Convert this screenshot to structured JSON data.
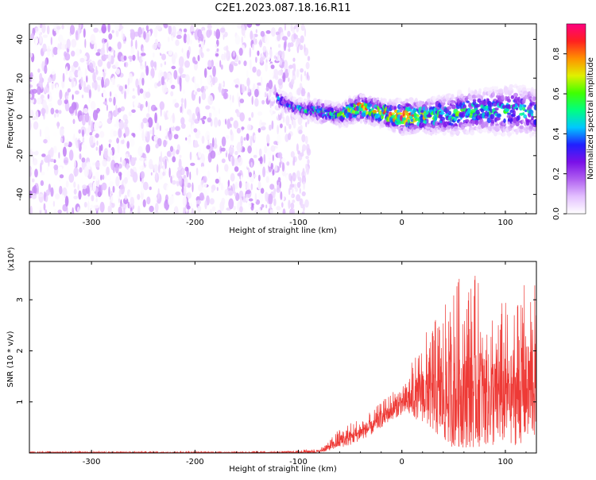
{
  "figure_title": "C2E1.2023.087.18.16.R11",
  "colors": {
    "snr_line": "#ee3a36",
    "colormap": [
      "#ffffff",
      "#e3c0ff",
      "#b060f0",
      "#7a10e8",
      "#2020ff",
      "#00c8ff",
      "#00ff80",
      "#40ff00",
      "#e0f000",
      "#ff9000",
      "#ff2020",
      "#ff0080"
    ]
  },
  "chart_data": [
    {
      "type": "heatmap",
      "title": "C2E1.2023.087.18.16.R11",
      "xlabel": "Height of straight line (km)",
      "ylabel": "Frequency (Hz)",
      "xlim": [
        -360,
        130
      ],
      "ylim": [
        -50,
        48
      ],
      "xticks": [
        -300,
        -200,
        -100,
        0,
        100
      ],
      "xtick_labels": [
        "-300",
        "-200",
        "-100",
        "0",
        "100"
      ],
      "yticks": [
        -40,
        -20,
        0,
        20,
        40
      ],
      "ytick_labels": [
        "-40",
        "-20",
        "0",
        "20",
        "40"
      ],
      "colorbar": {
        "label": "Normalized spectral amplitude",
        "range": [
          0,
          0.95
        ],
        "ticks": [
          0.0,
          0.2,
          0.4,
          0.6,
          0.8
        ],
        "tick_labels": [
          "0.0",
          "0.2",
          "0.4",
          "0.6",
          "0.8"
        ]
      },
      "noise_region": {
        "x": [
          -360,
          -110
        ],
        "amplitude_range": [
          0.0,
          0.15
        ]
      },
      "gap_region": {
        "x": [
          -110,
          -90
        ],
        "amplitude_range": [
          0.0,
          0.08
        ]
      },
      "signal_band": {
        "x": [
          -120,
          -100,
          -80,
          -60,
          -40,
          -20,
          0,
          20,
          40,
          60,
          80,
          100,
          120,
          130
        ],
        "center_freq": [
          9,
          4,
          3,
          1,
          5,
          2,
          0,
          0,
          1,
          2,
          3,
          3,
          3,
          2
        ],
        "half_width": [
          3,
          3,
          4,
          4,
          5,
          5,
          6,
          6,
          7,
          8,
          8,
          9,
          9,
          9
        ],
        "peak_amplitude": [
          0.4,
          0.45,
          0.5,
          0.55,
          0.85,
          0.7,
          0.9,
          0.7,
          0.55,
          0.55,
          0.5,
          0.5,
          0.45,
          0.45
        ]
      },
      "grid": false
    },
    {
      "type": "line",
      "xlabel": "Height of straight line (km)",
      "ylabel": "SNR (10 * v/v)",
      "y_multiplier_label": "(x10⁴)",
      "xlim": [
        -360,
        130
      ],
      "ylim": [
        0,
        3.75
      ],
      "xticks": [
        -300,
        -200,
        -100,
        0,
        100
      ],
      "xtick_labels": [
        "-300",
        "-200",
        "-100",
        "0",
        "100"
      ],
      "yticks": [
        1,
        2,
        3
      ],
      "ytick_labels": [
        "1",
        "2",
        "3"
      ],
      "series": [
        {
          "x": [
            -360,
            -300,
            -200,
            -120,
            -100,
            -90,
            -80,
            -70,
            -60,
            -50,
            -40,
            -30,
            -20,
            -10,
            0,
            10,
            20,
            30,
            40,
            50,
            60,
            70,
            80,
            90,
            100,
            110,
            120,
            130
          ],
          "y_upper": [
            0.03,
            0.03,
            0.03,
            0.03,
            0.05,
            0.08,
            0.08,
            0.25,
            0.5,
            0.6,
            0.7,
            0.8,
            1.0,
            1.2,
            1.4,
            1.8,
            2.3,
            2.6,
            2.8,
            3.3,
            3.6,
            3.5,
            3.3,
            3.0,
            3.0,
            3.2,
            3.4,
            3.3
          ],
          "y_lower": [
            0.0,
            0.0,
            0.0,
            0.0,
            0.0,
            0.0,
            0.0,
            0.05,
            0.1,
            0.15,
            0.25,
            0.35,
            0.5,
            0.65,
            0.75,
            0.7,
            0.6,
            0.4,
            0.2,
            0.1,
            0.1,
            0.1,
            0.15,
            0.1,
            0.2,
            0.15,
            0.2,
            0.3
          ]
        }
      ],
      "grid": false
    }
  ]
}
